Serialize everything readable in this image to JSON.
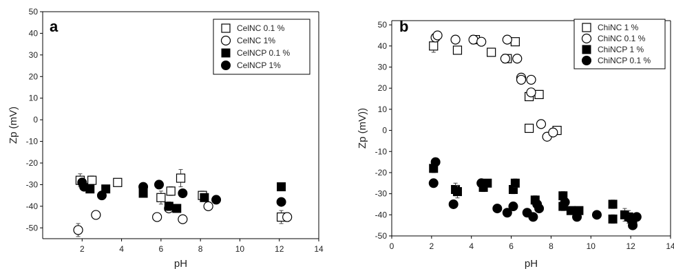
{
  "chart_data": [
    {
      "type": "scatter",
      "panel_label": "a",
      "xlabel": "pH",
      "ylabel": "Zp (mV)",
      "xlim": [
        0,
        14
      ],
      "ylim": [
        -55,
        50
      ],
      "x_ticks": [
        2,
        4,
        6,
        8,
        10,
        12,
        14
      ],
      "y_ticks": [
        -50,
        -40,
        -30,
        -20,
        -10,
        0,
        10,
        20,
        30,
        40,
        50
      ],
      "legend_position": "top-right",
      "series": [
        {
          "name": "CelNC 0.1 %",
          "marker": "open-square",
          "points": [
            [
              1.9,
              -28,
              3
            ],
            [
              2.5,
              -28,
              2
            ],
            [
              3.8,
              -29,
              1.5
            ],
            [
              6.0,
              -36,
              3
            ],
            [
              6.5,
              -33,
              2
            ],
            [
              7.0,
              -27,
              4
            ],
            [
              8.1,
              -35,
              2
            ],
            [
              12.1,
              -45,
              3
            ]
          ]
        },
        {
          "name": "CelNC 1%",
          "marker": "open-circle",
          "points": [
            [
              1.8,
              -51,
              3
            ],
            [
              2.7,
              -44,
              1.5
            ],
            [
              5.8,
              -45,
              1
            ],
            [
              6.4,
              -41,
              1.5
            ],
            [
              7.1,
              -46,
              1.5
            ],
            [
              8.4,
              -40,
              1.5
            ],
            [
              12.4,
              -45,
              2
            ]
          ]
        },
        {
          "name": "CelNCP 0.1 %",
          "marker": "filled-square",
          "points": [
            [
              2.4,
              -32,
              1
            ],
            [
              3.2,
              -32,
              1
            ],
            [
              5.1,
              -34,
              1
            ],
            [
              6.4,
              -40,
              2
            ],
            [
              6.8,
              -41,
              1
            ],
            [
              8.2,
              -36,
              1
            ],
            [
              12.1,
              -31,
              1
            ]
          ]
        },
        {
          "name": "CelNCP 1%",
          "marker": "filled-circle",
          "points": [
            [
              2.0,
              -29,
              1
            ],
            [
              2.1,
              -31,
              1
            ],
            [
              3.0,
              -35,
              1
            ],
            [
              5.1,
              -31,
              1
            ],
            [
              5.9,
              -30,
              1
            ],
            [
              7.1,
              -34,
              1
            ],
            [
              8.8,
              -37,
              1
            ],
            [
              12.1,
              -38,
              1
            ]
          ]
        }
      ]
    },
    {
      "type": "scatter",
      "panel_label": "b",
      "xlabel": "pH",
      "ylabel": "Zp (mV))",
      "xlim": [
        0,
        14
      ],
      "ylim": [
        -50,
        52
      ],
      "x_ticks": [
        0,
        2,
        4,
        6,
        8,
        10,
        12,
        14
      ],
      "y_ticks": [
        -50,
        -40,
        -30,
        -20,
        -10,
        0,
        10,
        20,
        30,
        40,
        50
      ],
      "legend_position": "top-right",
      "series": [
        {
          "name": "ChiNC 1 %",
          "marker": "open-square",
          "points": [
            [
              2.1,
              40,
              3
            ],
            [
              3.3,
              38,
              1.5
            ],
            [
              4.2,
              43,
              1
            ],
            [
              5.0,
              37,
              1
            ],
            [
              5.8,
              34,
              1
            ],
            [
              6.2,
              42,
              1
            ],
            [
              6.9,
              16,
              1
            ],
            [
              6.9,
              1,
              1
            ],
            [
              7.4,
              17,
              1
            ],
            [
              8.3,
              0,
              1
            ]
          ]
        },
        {
          "name": "ChiNC 0.1 %",
          "marker": "open-circle",
          "points": [
            [
              2.2,
              44,
              2
            ],
            [
              2.3,
              45,
              1.5
            ],
            [
              3.2,
              43,
              1
            ],
            [
              4.1,
              43,
              1
            ],
            [
              4.5,
              42,
              1
            ],
            [
              5.7,
              34,
              1
            ],
            [
              5.8,
              43,
              1
            ],
            [
              6.3,
              34,
              1
            ],
            [
              6.5,
              25,
              1.5
            ],
            [
              6.5,
              24,
              1
            ],
            [
              7.0,
              24,
              1
            ],
            [
              7.0,
              18,
              1
            ],
            [
              7.5,
              3,
              1
            ],
            [
              7.8,
              -3,
              1
            ],
            [
              8.1,
              -1,
              1
            ]
          ]
        },
        {
          "name": "ChiNCP 1 %",
          "marker": "filled-square",
          "points": [
            [
              2.1,
              -18,
              2
            ],
            [
              3.2,
              -28,
              3
            ],
            [
              3.3,
              -29,
              3
            ],
            [
              4.6,
              -27,
              2
            ],
            [
              4.8,
              -25,
              1
            ],
            [
              6.1,
              -28,
              2
            ],
            [
              6.2,
              -25,
              2
            ],
            [
              7.2,
              -33,
              2
            ],
            [
              8.6,
              -31,
              2
            ],
            [
              8.6,
              -36,
              2
            ],
            [
              9.0,
              -38,
              1
            ],
            [
              9.4,
              -38,
              1
            ],
            [
              11.1,
              -35,
              2
            ],
            [
              11.1,
              -42,
              2
            ],
            [
              11.7,
              -40,
              3
            ],
            [
              11.9,
              -41,
              3
            ],
            [
              12.1,
              -44,
              2
            ]
          ]
        },
        {
          "name": "ChiNCP 0.1 %",
          "marker": "filled-circle",
          "points": [
            [
              2.1,
              -25,
              1
            ],
            [
              2.2,
              -15,
              1
            ],
            [
              3.1,
              -35,
              1
            ],
            [
              4.5,
              -25,
              1
            ],
            [
              5.3,
              -37,
              1
            ],
            [
              5.8,
              -39,
              1
            ],
            [
              6.1,
              -36,
              1
            ],
            [
              6.8,
              -39,
              1
            ],
            [
              7.1,
              -41,
              1
            ],
            [
              7.3,
              -35,
              1
            ],
            [
              7.4,
              -37,
              1
            ],
            [
              8.7,
              -34,
              1
            ],
            [
              9.3,
              -41,
              1
            ],
            [
              10.3,
              -40,
              1
            ],
            [
              12.0,
              -42,
              2
            ],
            [
              12.1,
              -45,
              1
            ],
            [
              12.3,
              -41,
              1
            ]
          ]
        }
      ]
    }
  ]
}
